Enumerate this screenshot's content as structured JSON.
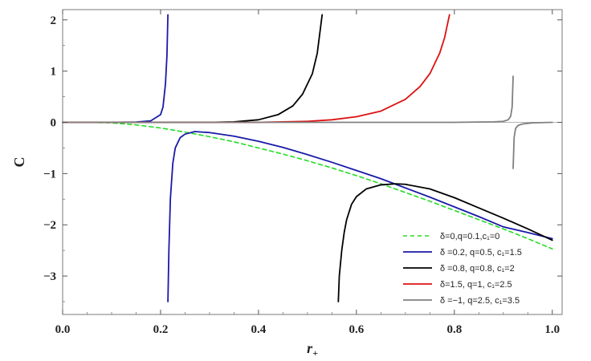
{
  "chart_data": {
    "type": "line",
    "title": "",
    "xlabel": "r",
    "xlabel_sub": "+",
    "ylabel": "C",
    "xlim": [
      0.0,
      1.02
    ],
    "ylim": [
      -3.75,
      2.2
    ],
    "xticks": [
      0.0,
      0.2,
      0.4,
      0.6,
      0.8,
      1.0
    ],
    "xtick_labels": [
      "0.0",
      "0.2",
      "0.4",
      "0.6",
      "0.8",
      "1.0"
    ],
    "yticks": [
      -3,
      -2,
      -1,
      0,
      1,
      2
    ],
    "ytick_labels": [
      "−3",
      "−2",
      "−1",
      "0",
      "1",
      "2"
    ],
    "grid": false,
    "legend_position": "bottom-right",
    "series": [
      {
        "name": "δ=0,q=0.1,c₁=0",
        "color": "#22dd22",
        "dash": "dashed",
        "segments": [
          {
            "x": [
              0.0,
              0.05,
              0.1,
              0.15,
              0.2,
              0.25,
              0.3,
              0.35,
              0.4,
              0.45,
              0.5,
              0.55,
              0.6,
              0.65,
              0.7,
              0.75,
              0.8,
              0.85,
              0.9,
              0.95,
              1.0
            ],
            "y": [
              0.0,
              0.0,
              -0.01,
              -0.05,
              -0.11,
              -0.19,
              -0.28,
              -0.38,
              -0.5,
              -0.62,
              -0.75,
              -0.89,
              -1.04,
              -1.2,
              -1.37,
              -1.54,
              -1.72,
              -1.9,
              -2.08,
              -2.27,
              -2.47
            ]
          }
        ]
      },
      {
        "name": "δ =0.2, q=0.5, c₁=1.5",
        "color": "#1a1aa8",
        "dash": "solid",
        "segments": [
          {
            "x": [
              0.0,
              0.05,
              0.1,
              0.15,
              0.18,
              0.2,
              0.205,
              0.21,
              0.213,
              0.215
            ],
            "y": [
              0.0,
              0.0,
              0.0,
              0.005,
              0.03,
              0.15,
              0.3,
              0.75,
              1.3,
              2.1
            ]
          },
          {
            "x": [
              0.215,
              0.217,
              0.22,
              0.225,
              0.23,
              0.24,
              0.25,
              0.27,
              0.3,
              0.35,
              0.4,
              0.45,
              0.5,
              0.55,
              0.6,
              0.65,
              0.7,
              0.75,
              0.8,
              0.85,
              0.9,
              0.95,
              1.0
            ],
            "y": [
              -3.5,
              -2.5,
              -1.5,
              -0.8,
              -0.5,
              -0.3,
              -0.23,
              -0.18,
              -0.2,
              -0.27,
              -0.37,
              -0.49,
              -0.63,
              -0.78,
              -0.94,
              -1.1,
              -1.28,
              -1.46,
              -1.65,
              -1.84,
              -2.04,
              -2.15,
              -2.27
            ]
          }
        ]
      },
      {
        "name": "δ =0.8, q=0.8, c₁=2",
        "color": "#000000",
        "dash": "solid",
        "segments": [
          {
            "x": [
              0.0,
              0.2,
              0.3,
              0.35,
              0.4,
              0.44,
              0.47,
              0.49,
              0.51,
              0.52,
              0.53
            ],
            "y": [
              0.0,
              0.0,
              0.0,
              0.01,
              0.05,
              0.15,
              0.32,
              0.55,
              0.95,
              1.35,
              2.1
            ]
          },
          {
            "x": [
              0.563,
              0.565,
              0.57,
              0.575,
              0.58,
              0.59,
              0.6,
              0.62,
              0.65,
              0.68,
              0.7,
              0.75,
              0.8,
              0.85,
              0.9,
              0.95,
              1.0
            ],
            "y": [
              -3.5,
              -3.0,
              -2.5,
              -2.15,
              -1.9,
              -1.6,
              -1.45,
              -1.3,
              -1.22,
              -1.2,
              -1.21,
              -1.3,
              -1.47,
              -1.67,
              -1.87,
              -2.08,
              -2.3
            ]
          }
        ]
      },
      {
        "name": "δ=1.5, q=1, c₁=2.5",
        "color": "#dd1111",
        "dash": "solid",
        "segments": [
          {
            "x": [
              0.0,
              0.3,
              0.4,
              0.5,
              0.55,
              0.6,
              0.65,
              0.7,
              0.73,
              0.75,
              0.77,
              0.78,
              0.79
            ],
            "y": [
              0.0,
              0.0,
              0.0,
              0.02,
              0.05,
              0.11,
              0.22,
              0.45,
              0.7,
              0.95,
              1.35,
              1.65,
              2.1
            ]
          }
        ]
      },
      {
        "name": "δ =−1, q=2.5, c₁=3.5",
        "color": "#808080",
        "dash": "solid",
        "segments": [
          {
            "x": [
              0.0,
              0.5,
              0.8,
              0.88,
              0.9,
              0.91,
              0.915,
              0.918,
              0.92
            ],
            "y": [
              0.0,
              0.0,
              0.0,
              0.01,
              0.02,
              0.05,
              0.12,
              0.3,
              0.9
            ]
          },
          {
            "x": [
              0.92,
              0.922,
              0.925,
              0.93,
              0.94,
              0.96,
              1.0
            ],
            "y": [
              -0.9,
              -0.3,
              -0.12,
              -0.06,
              -0.03,
              -0.01,
              0.0
            ]
          }
        ]
      }
    ]
  }
}
